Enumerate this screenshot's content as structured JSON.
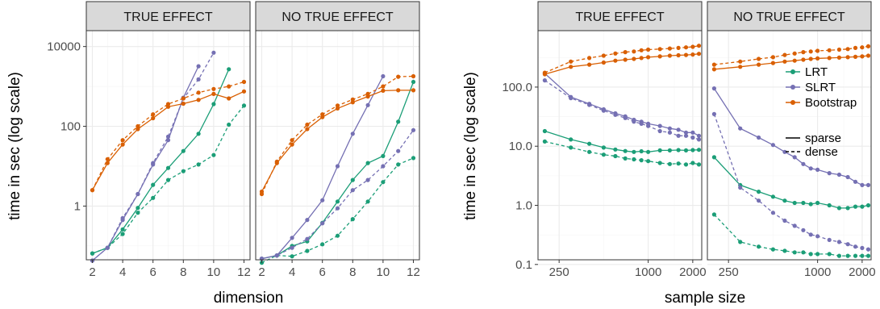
{
  "colors": {
    "LRT": "#1b9e77",
    "SLRT": "#7570b3",
    "Bootstrap": "#d95f02",
    "strip_bg": "#d9d9d9",
    "grid_major": "#ebebeb",
    "grid_minor": "#f5f5f5",
    "panel_border": "#333333"
  },
  "legend": {
    "methods": [
      "LRT",
      "SLRT",
      "Bootstrap"
    ],
    "linetypes": [
      "sparse",
      "dense"
    ],
    "placement": "inside right of last panel"
  },
  "chart_data": [
    {
      "type": "line",
      "y_scale": "log",
      "xlabel": "dimension",
      "ylabel": "time in sec (log scale)",
      "facets": [
        "TRUE EFFECT",
        "NO TRUE EFFECT"
      ],
      "xlim": [
        1.6,
        12.4
      ],
      "ylim": [
        0.045,
        25000
      ],
      "x_ticks": [
        2,
        4,
        6,
        8,
        10,
        12
      ],
      "y_ticks": [
        1,
        100,
        10000
      ],
      "y_tick_labels": [
        "1",
        "100",
        "10000"
      ],
      "panels": [
        {
          "title": "TRUE EFFECT",
          "series": [
            {
              "method": "LRT",
              "linetype": "sparse",
              "x": [
                2,
                3,
                4,
                5,
                6,
                7,
                8,
                9,
                10,
                11
              ],
              "y": [
                0.065,
                0.09,
                0.26,
                0.9,
                3.4,
                9.0,
                24,
                65,
                360,
                2700
              ]
            },
            {
              "method": "LRT",
              "linetype": "dense",
              "x": [
                2,
                3,
                4,
                5,
                6,
                7,
                8,
                9,
                10,
                11,
                12
              ],
              "y": [
                0.065,
                0.09,
                0.2,
                0.68,
                1.6,
                4.5,
                7.5,
                11,
                19,
                110,
                330
              ]
            },
            {
              "method": "SLRT",
              "linetype": "sparse",
              "x": [
                2,
                3,
                4,
                5,
                6,
                7,
                8,
                9
              ],
              "y": [
                0.043,
                0.09,
                0.45,
                2.0,
                11,
                45,
                520,
                3200
              ]
            },
            {
              "method": "SLRT",
              "linetype": "dense",
              "x": [
                2,
                3,
                4,
                5,
                6,
                7,
                8,
                9,
                10
              ],
              "y": [
                0.043,
                0.09,
                0.5,
                2.0,
                12,
                55,
                500,
                1500,
                7000
              ]
            },
            {
              "method": "Bootstrap",
              "linetype": "sparse",
              "x": [
                2,
                3,
                4,
                5,
                6,
                7,
                8,
                9,
                10,
                11,
                12
              ],
              "y": [
                2.5,
                12,
                35,
                85,
                160,
                310,
                370,
                460,
                650,
                500,
                750
              ]
            },
            {
              "method": "Bootstrap",
              "linetype": "dense",
              "x": [
                2,
                3,
                4,
                5,
                6,
                7,
                8,
                9,
                10,
                11,
                12
              ],
              "y": [
                2.5,
                15,
                45,
                100,
                200,
                360,
                500,
                700,
                860,
                1000,
                1300
              ]
            }
          ]
        },
        {
          "title": "NO TRUE EFFECT",
          "series": [
            {
              "method": "LRT",
              "linetype": "sparse",
              "x": [
                2,
                3,
                4,
                5,
                6,
                7,
                8,
                9,
                10,
                11,
                12
              ],
              "y": [
                0.048,
                0.058,
                0.1,
                0.13,
                0.38,
                1.3,
                4.5,
                12,
                18,
                130,
                1300
              ]
            },
            {
              "method": "LRT",
              "linetype": "dense",
              "x": [
                2,
                3,
                4,
                5,
                6,
                7,
                8,
                9,
                10,
                11,
                12
              ],
              "y": [
                0.038,
                0.058,
                0.055,
                0.075,
                0.11,
                0.18,
                0.47,
                1.3,
                4.0,
                11,
                16
              ]
            },
            {
              "method": "SLRT",
              "linetype": "sparse",
              "x": [
                2,
                3,
                4,
                5,
                6,
                7,
                8,
                9,
                10
              ],
              "y": [
                0.048,
                0.058,
                0.16,
                0.45,
                1.4,
                10,
                65,
                340,
                1800
              ]
            },
            {
              "method": "SLRT",
              "linetype": "dense",
              "x": [
                2,
                3,
                4,
                5,
                6,
                7,
                8,
                9,
                10,
                11,
                12
              ],
              "y": [
                0.048,
                0.058,
                0.09,
                0.15,
                0.37,
                0.88,
                2.5,
                4.5,
                10,
                24,
                80
              ]
            },
            {
              "method": "Bootstrap",
              "linetype": "sparse",
              "x": [
                2,
                3,
                4,
                5,
                6,
                7,
                8,
                9,
                10,
                11,
                12
              ],
              "y": [
                2.3,
                12,
                35,
                85,
                170,
                280,
                400,
                560,
                780,
                800,
                800
              ]
            },
            {
              "method": "Bootstrap",
              "linetype": "dense",
              "x": [
                2,
                3,
                4,
                5,
                6,
                7,
                8,
                9,
                10,
                11,
                12
              ],
              "y": [
                2.0,
                13,
                45,
                110,
                200,
                330,
                470,
                650,
                1000,
                1750,
                1800
              ]
            }
          ]
        }
      ]
    },
    {
      "type": "line",
      "y_scale": "log",
      "x_scale": "log",
      "xlabel": "sample size",
      "ylabel": "time in sec (log scale)",
      "facets": [
        "TRUE EFFECT",
        "NO TRUE EFFECT"
      ],
      "xlim": [
        180,
        2300
      ],
      "ylim": [
        0.12,
        900
      ],
      "x_ticks": [
        250,
        1000,
        2000
      ],
      "y_ticks": [
        0.1,
        1,
        10,
        100
      ],
      "y_tick_labels": [
        "0.1",
        "1.0",
        "10.0",
        "100.0"
      ],
      "panels": [
        {
          "title": "TRUE EFFECT",
          "series": [
            {
              "method": "LRT",
              "linetype": "sparse",
              "x": [
                200,
                300,
                400,
                500,
                600,
                700,
                800,
                900,
                1000,
                1200,
                1400,
                1600,
                1800,
                2000,
                2200
              ],
              "y": [
                18,
                13,
                11,
                9.5,
                8.8,
                8.3,
                8.0,
                8.2,
                8.0,
                8.5,
                8.5,
                8.6,
                8.5,
                8.6,
                8.7
              ]
            },
            {
              "method": "LRT",
              "linetype": "dense",
              "x": [
                200,
                300,
                400,
                500,
                600,
                700,
                800,
                900,
                1000,
                1200,
                1400,
                1600,
                1800,
                2000,
                2200
              ],
              "y": [
                12,
                9.5,
                8.0,
                7.2,
                6.8,
                6.2,
                6.0,
                5.8,
                5.6,
                5.2,
                5.0,
                5.1,
                4.9,
                5.2,
                4.9
              ]
            },
            {
              "method": "SLRT",
              "linetype": "sparse",
              "x": [
                200,
                300,
                400,
                500,
                600,
                700,
                800,
                900,
                1000,
                1200,
                1400,
                1600,
                1800,
                2000,
                2200
              ],
              "y": [
                170,
                68,
                52,
                42,
                36,
                32,
                28,
                26,
                24,
                22,
                20,
                19,
                17,
                17,
                15
              ]
            },
            {
              "method": "SLRT",
              "linetype": "dense",
              "x": [
                200,
                300,
                400,
                500,
                600,
                700,
                800,
                900,
                1000,
                1200,
                1400,
                1600,
                1800,
                2000,
                2200
              ],
              "y": [
                130,
                65,
                50,
                40,
                34,
                30,
                26,
                24,
                22,
                18,
                17,
                15,
                15,
                14,
                13
              ]
            },
            {
              "method": "Bootstrap",
              "linetype": "sparse",
              "x": [
                200,
                300,
                400,
                500,
                600,
                700,
                800,
                900,
                1000,
                1200,
                1400,
                1600,
                1800,
                2000,
                2200
              ],
              "y": [
                165,
                220,
                240,
                260,
                280,
                290,
                300,
                310,
                320,
                330,
                340,
                345,
                350,
                355,
                365
              ]
            },
            {
              "method": "Bootstrap",
              "linetype": "dense",
              "x": [
                200,
                300,
                400,
                500,
                600,
                700,
                800,
                900,
                1000,
                1200,
                1400,
                1600,
                1800,
                2000,
                2200
              ],
              "y": [
                175,
                270,
                310,
                340,
                370,
                390,
                400,
                420,
                430,
                440,
                450,
                460,
                470,
                480,
                500
              ]
            }
          ]
        },
        {
          "title": "NO TRUE EFFECT",
          "series": [
            {
              "method": "LRT",
              "linetype": "sparse",
              "x": [
                200,
                300,
                400,
                500,
                600,
                700,
                800,
                900,
                1000,
                1200,
                1400,
                1600,
                1800,
                2000,
                2200
              ],
              "y": [
                6.5,
                2.2,
                1.7,
                1.4,
                1.2,
                1.1,
                1.1,
                1.05,
                1.1,
                1.0,
                0.9,
                0.9,
                0.95,
                0.95,
                1.0
              ]
            },
            {
              "method": "LRT",
              "linetype": "dense",
              "x": [
                200,
                300,
                400,
                500,
                600,
                700,
                800,
                900,
                1000,
                1200,
                1400,
                1600,
                1800,
                2000,
                2200
              ],
              "y": [
                0.7,
                0.24,
                0.2,
                0.18,
                0.17,
                0.16,
                0.16,
                0.15,
                0.15,
                0.15,
                0.14,
                0.14,
                0.14,
                0.14,
                0.14
              ]
            },
            {
              "method": "SLRT",
              "linetype": "sparse",
              "x": [
                200,
                300,
                400,
                500,
                600,
                700,
                800,
                900,
                1000,
                1200,
                1400,
                1600,
                1800,
                2000,
                2200
              ],
              "y": [
                95,
                20,
                14,
                10.5,
                8.0,
                6.5,
                5.0,
                4.2,
                4.0,
                3.5,
                3.3,
                3.0,
                2.5,
                2.2,
                2.2
              ]
            },
            {
              "method": "SLRT",
              "linetype": "dense",
              "x": [
                200,
                300,
                400,
                500,
                600,
                700,
                800,
                900,
                1000,
                1200,
                1400,
                1600,
                1800,
                2000,
                2200
              ],
              "y": [
                35,
                2.0,
                1.2,
                0.75,
                0.55,
                0.45,
                0.38,
                0.32,
                0.3,
                0.26,
                0.24,
                0.22,
                0.2,
                0.19,
                0.18
              ]
            },
            {
              "method": "Bootstrap",
              "linetype": "sparse",
              "x": [
                200,
                300,
                400,
                500,
                600,
                700,
                800,
                900,
                1000,
                1200,
                1400,
                1600,
                1800,
                2000,
                2200
              ],
              "y": [
                200,
                220,
                240,
                255,
                270,
                280,
                290,
                300,
                305,
                310,
                315,
                320,
                325,
                330,
                340
              ]
            },
            {
              "method": "Bootstrap",
              "linetype": "dense",
              "x": [
                200,
                300,
                400,
                500,
                600,
                700,
                800,
                900,
                1000,
                1200,
                1400,
                1600,
                1800,
                2000,
                2200
              ],
              "y": [
                240,
                270,
                300,
                320,
                350,
                370,
                390,
                400,
                410,
                420,
                430,
                440,
                460,
                470,
                490
              ]
            }
          ]
        }
      ]
    }
  ]
}
